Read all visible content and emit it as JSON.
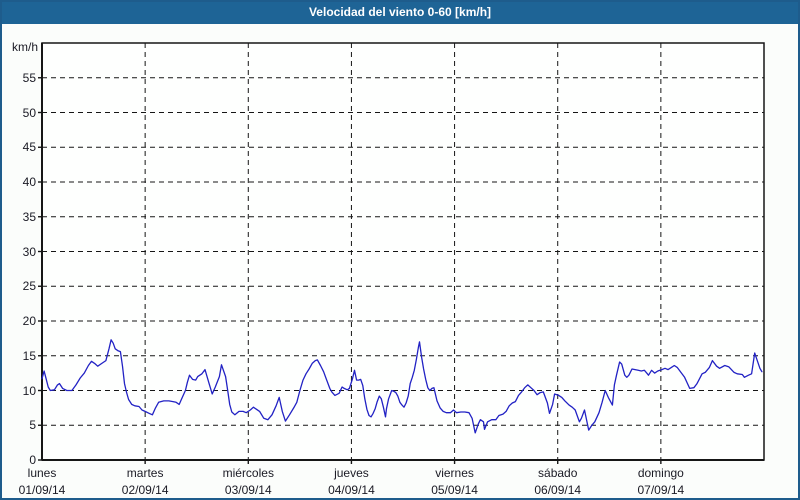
{
  "window": {
    "title": "Velocidad del viento 0-60 [km/h]"
  },
  "colors": {
    "titlebar_bg": "#1e6496",
    "window_border": "#1e5c8c",
    "window_bg": "#fbfdfb",
    "plot_bg": "#fefffe",
    "grid": "#161616",
    "line": "#2222c4",
    "text": "#1a1a24"
  },
  "chart_data": {
    "type": "line",
    "title": "Velocidad del viento 0-60 [km/h]",
    "y_unit_label": "km/h",
    "ylim": [
      0,
      60
    ],
    "y_ticks": [
      0,
      5,
      10,
      15,
      20,
      25,
      30,
      35,
      40,
      45,
      50,
      55
    ],
    "xlim_days": [
      0,
      7
    ],
    "grid_style": "dashed",
    "legend": "none",
    "x_days": [
      {
        "name": "lunes",
        "date": "01/09/14"
      },
      {
        "name": "martes",
        "date": "02/09/14"
      },
      {
        "name": "miércoles",
        "date": "03/09/14"
      },
      {
        "name": "jueves",
        "date": "04/09/14"
      },
      {
        "name": "viernes",
        "date": "05/09/14"
      },
      {
        "name": "sábado",
        "date": "06/09/14"
      },
      {
        "name": "domingo",
        "date": "07/09/14"
      }
    ],
    "series": [
      {
        "name": "Velocidad del viento [km/h]",
        "points": [
          [
            0.0,
            11.7
          ],
          [
            0.02,
            12.8
          ],
          [
            0.04,
            11.7
          ],
          [
            0.06,
            10.5
          ],
          [
            0.08,
            10.0
          ],
          [
            0.12,
            10.1
          ],
          [
            0.15,
            10.8
          ],
          [
            0.17,
            11.0
          ],
          [
            0.2,
            10.3
          ],
          [
            0.24,
            10.0
          ],
          [
            0.29,
            10.0
          ],
          [
            0.33,
            10.8
          ],
          [
            0.37,
            11.8
          ],
          [
            0.41,
            12.5
          ],
          [
            0.45,
            13.6
          ],
          [
            0.48,
            14.2
          ],
          [
            0.51,
            13.9
          ],
          [
            0.54,
            13.5
          ],
          [
            0.58,
            13.9
          ],
          [
            0.62,
            14.3
          ],
          [
            0.65,
            16.0
          ],
          [
            0.67,
            17.3
          ],
          [
            0.69,
            16.8
          ],
          [
            0.71,
            16.0
          ],
          [
            0.74,
            15.7
          ],
          [
            0.76,
            15.6
          ],
          [
            0.78,
            13.5
          ],
          [
            0.8,
            11.0
          ],
          [
            0.82,
            9.7
          ],
          [
            0.84,
            8.7
          ],
          [
            0.87,
            8.0
          ],
          [
            0.9,
            7.8
          ],
          [
            0.94,
            7.7
          ],
          [
            0.97,
            7.2
          ],
          [
            1.0,
            7.0
          ],
          [
            1.04,
            6.7
          ],
          [
            1.07,
            6.5
          ],
          [
            1.1,
            7.5
          ],
          [
            1.13,
            8.3
          ],
          [
            1.18,
            8.5
          ],
          [
            1.23,
            8.5
          ],
          [
            1.27,
            8.4
          ],
          [
            1.3,
            8.3
          ],
          [
            1.33,
            8.0
          ],
          [
            1.36,
            9.0
          ],
          [
            1.39,
            10.0
          ],
          [
            1.41,
            11.2
          ],
          [
            1.43,
            12.2
          ],
          [
            1.46,
            11.6
          ],
          [
            1.49,
            11.5
          ],
          [
            1.51,
            12.0
          ],
          [
            1.55,
            12.4
          ],
          [
            1.58,
            13.0
          ],
          [
            1.62,
            11.0
          ],
          [
            1.65,
            9.5
          ],
          [
            1.68,
            10.5
          ],
          [
            1.72,
            12.0
          ],
          [
            1.74,
            13.7
          ],
          [
            1.78,
            12.0
          ],
          [
            1.8,
            10.0
          ],
          [
            1.82,
            8.0
          ],
          [
            1.84,
            6.9
          ],
          [
            1.87,
            6.5
          ],
          [
            1.91,
            7.0
          ],
          [
            1.95,
            7.0
          ],
          [
            1.98,
            6.8
          ],
          [
            2.02,
            7.2
          ],
          [
            2.05,
            7.6
          ],
          [
            2.08,
            7.3
          ],
          [
            2.11,
            7.0
          ],
          [
            2.15,
            6.0
          ],
          [
            2.19,
            5.8
          ],
          [
            2.23,
            6.5
          ],
          [
            2.27,
            7.8
          ],
          [
            2.3,
            9.0
          ],
          [
            2.33,
            7.0
          ],
          [
            2.36,
            5.6
          ],
          [
            2.4,
            6.5
          ],
          [
            2.44,
            7.5
          ],
          [
            2.47,
            8.3
          ],
          [
            2.5,
            10.0
          ],
          [
            2.53,
            11.5
          ],
          [
            2.56,
            12.4
          ],
          [
            2.59,
            13.1
          ],
          [
            2.62,
            13.9
          ],
          [
            2.65,
            14.3
          ],
          [
            2.67,
            14.4
          ],
          [
            2.7,
            13.6
          ],
          [
            2.73,
            12.7
          ],
          [
            2.76,
            11.5
          ],
          [
            2.79,
            10.3
          ],
          [
            2.81,
            9.8
          ],
          [
            2.84,
            9.3
          ],
          [
            2.88,
            9.6
          ],
          [
            2.91,
            10.5
          ],
          [
            2.93,
            10.3
          ],
          [
            2.96,
            10.1
          ],
          [
            2.98,
            10.3
          ],
          [
            3.01,
            11.7
          ],
          [
            3.03,
            12.9
          ],
          [
            3.05,
            11.5
          ],
          [
            3.07,
            11.5
          ],
          [
            3.09,
            11.6
          ],
          [
            3.11,
            10.7
          ],
          [
            3.13,
            8.8
          ],
          [
            3.15,
            7.3
          ],
          [
            3.17,
            6.4
          ],
          [
            3.19,
            6.2
          ],
          [
            3.21,
            6.7
          ],
          [
            3.23,
            7.4
          ],
          [
            3.25,
            8.4
          ],
          [
            3.27,
            9.2
          ],
          [
            3.29,
            8.8
          ],
          [
            3.31,
            7.6
          ],
          [
            3.33,
            6.2
          ],
          [
            3.34,
            7.4
          ],
          [
            3.36,
            8.8
          ],
          [
            3.39,
            10.0
          ],
          [
            3.41,
            9.9
          ],
          [
            3.43,
            9.7
          ],
          [
            3.45,
            9.2
          ],
          [
            3.47,
            8.3
          ],
          [
            3.49,
            7.9
          ],
          [
            3.51,
            7.6
          ],
          [
            3.53,
            8.2
          ],
          [
            3.55,
            9.2
          ],
          [
            3.57,
            11.0
          ],
          [
            3.59,
            11.9
          ],
          [
            3.61,
            12.9
          ],
          [
            3.63,
            14.5
          ],
          [
            3.65,
            16.3
          ],
          [
            3.66,
            17.0
          ],
          [
            3.68,
            14.8
          ],
          [
            3.7,
            13.1
          ],
          [
            3.72,
            11.6
          ],
          [
            3.74,
            10.4
          ],
          [
            3.76,
            10.0
          ],
          [
            3.78,
            10.3
          ],
          [
            3.8,
            10.4
          ],
          [
            3.83,
            8.5
          ],
          [
            3.86,
            7.5
          ],
          [
            3.89,
            7.0
          ],
          [
            3.92,
            6.8
          ],
          [
            3.96,
            6.8
          ],
          [
            3.99,
            7.2
          ],
          [
            4.02,
            6.8
          ],
          [
            4.06,
            6.9
          ],
          [
            4.1,
            6.9
          ],
          [
            4.14,
            6.8
          ],
          [
            4.17,
            6.0
          ],
          [
            4.2,
            3.9
          ],
          [
            4.23,
            5.2
          ],
          [
            4.25,
            5.8
          ],
          [
            4.28,
            5.5
          ],
          [
            4.29,
            4.4
          ],
          [
            4.32,
            5.5
          ],
          [
            4.36,
            5.8
          ],
          [
            4.4,
            5.8
          ],
          [
            4.43,
            6.4
          ],
          [
            4.47,
            6.6
          ],
          [
            4.5,
            7.0
          ],
          [
            4.53,
            7.8
          ],
          [
            4.56,
            8.2
          ],
          [
            4.59,
            8.4
          ],
          [
            4.62,
            9.3
          ],
          [
            4.65,
            9.8
          ],
          [
            4.68,
            10.4
          ],
          [
            4.71,
            10.8
          ],
          [
            4.74,
            10.4
          ],
          [
            4.77,
            10.0
          ],
          [
            4.8,
            9.4
          ],
          [
            4.83,
            9.7
          ],
          [
            4.86,
            9.8
          ],
          [
            4.9,
            8.2
          ],
          [
            4.92,
            6.7
          ],
          [
            4.95,
            8.0
          ],
          [
            4.97,
            9.5
          ],
          [
            5.01,
            9.3
          ],
          [
            5.04,
            9.0
          ],
          [
            5.07,
            8.5
          ],
          [
            5.11,
            7.9
          ],
          [
            5.14,
            7.6
          ],
          [
            5.17,
            7.2
          ],
          [
            5.21,
            5.5
          ],
          [
            5.23,
            6.0
          ],
          [
            5.26,
            7.2
          ],
          [
            5.3,
            4.3
          ],
          [
            5.33,
            5.0
          ],
          [
            5.36,
            5.5
          ],
          [
            5.4,
            6.8
          ],
          [
            5.43,
            8.3
          ],
          [
            5.46,
            10.0
          ],
          [
            5.49,
            9.0
          ],
          [
            5.53,
            7.9
          ],
          [
            5.55,
            10.8
          ],
          [
            5.57,
            12.2
          ],
          [
            5.6,
            14.1
          ],
          [
            5.62,
            13.8
          ],
          [
            5.65,
            12.2
          ],
          [
            5.67,
            11.9
          ],
          [
            5.69,
            12.2
          ],
          [
            5.72,
            13.1
          ],
          [
            5.75,
            13.0
          ],
          [
            5.78,
            12.9
          ],
          [
            5.81,
            12.8
          ],
          [
            5.84,
            12.9
          ],
          [
            5.87,
            12.4
          ],
          [
            5.88,
            12.2
          ],
          [
            5.91,
            12.9
          ],
          [
            5.94,
            12.5
          ],
          [
            5.97,
            12.8
          ],
          [
            6.01,
            13.0
          ],
          [
            6.04,
            13.2
          ],
          [
            6.07,
            13.0
          ],
          [
            6.1,
            13.3
          ],
          [
            6.13,
            13.6
          ],
          [
            6.16,
            13.3
          ],
          [
            6.2,
            12.5
          ],
          [
            6.23,
            11.9
          ],
          [
            6.28,
            10.3
          ],
          [
            6.32,
            10.4
          ],
          [
            6.35,
            11.0
          ],
          [
            6.4,
            12.4
          ],
          [
            6.43,
            12.6
          ],
          [
            6.47,
            13.3
          ],
          [
            6.5,
            14.3
          ],
          [
            6.54,
            13.5
          ],
          [
            6.57,
            13.2
          ],
          [
            6.62,
            13.6
          ],
          [
            6.66,
            13.4
          ],
          [
            6.71,
            12.6
          ],
          [
            6.74,
            12.4
          ],
          [
            6.79,
            12.3
          ],
          [
            6.81,
            11.9
          ],
          [
            6.85,
            12.2
          ],
          [
            6.88,
            12.4
          ],
          [
            6.91,
            15.4
          ],
          [
            6.93,
            14.5
          ],
          [
            6.96,
            13.2
          ],
          [
            6.98,
            12.7
          ]
        ]
      }
    ]
  }
}
